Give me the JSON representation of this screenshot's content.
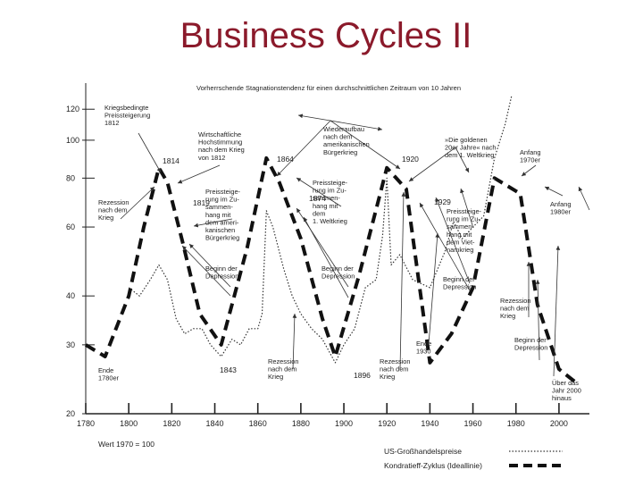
{
  "slide": {
    "title": "Business Cycles II"
  },
  "chart_data": {
    "type": "line",
    "title": "Vorherrschende Stagnationstendenz für einen durchschnittlichen Zeitraum von 10 Jahren",
    "xlabel": "",
    "ylabel": "",
    "y_scale": "log",
    "xlim": [
      1780,
      2010
    ],
    "ylim": [
      20,
      130
    ],
    "x_ticks": [
      "1780",
      "1800",
      "1820",
      "1840",
      "1860",
      "1880",
      "1900",
      "1920",
      "1940",
      "1960",
      "1980",
      "2000"
    ],
    "y_ticks": [
      "120",
      "100",
      "80",
      "60",
      "40",
      "30",
      "20"
    ],
    "base_note": "Wert 1970 = 100",
    "legend": [
      {
        "label": "US-Großhandelspreise",
        "style": "dotted"
      },
      {
        "label": "Kondratieff-Zyklus (Ideallinie)",
        "style": "dashed"
      }
    ],
    "legend_position": "bottom-right",
    "series": [
      {
        "name": "Kondratieff-Zyklus (Ideallinie)",
        "x": [
          1780,
          1789,
          1800,
          1807,
          1814,
          1818,
          1825,
          1833,
          1843,
          1855,
          1864,
          1870,
          1880,
          1890,
          1896,
          1907,
          1920,
          1929,
          1940,
          1950,
          1960,
          1970,
          1982,
          1990,
          2000,
          2008
        ],
        "y": [
          30,
          28,
          40,
          60,
          85,
          78,
          55,
          36,
          30,
          53,
          90,
          78,
          56,
          35,
          28,
          45,
          85,
          75,
          27,
          32,
          42,
          80,
          73,
          38,
          26,
          24
        ]
      },
      {
        "name": "US-Großhandelspreise",
        "x": [
          1800,
          1805,
          1810,
          1814,
          1818,
          1822,
          1826,
          1830,
          1834,
          1838,
          1843,
          1848,
          1852,
          1856,
          1860,
          1862,
          1864,
          1867,
          1872,
          1876,
          1880,
          1885,
          1890,
          1896,
          1900,
          1905,
          1910,
          1915,
          1918,
          1920,
          1922,
          1926,
          1932,
          1940,
          1947,
          1951,
          1955,
          1960,
          1965,
          1970,
          1975,
          1978
        ],
        "y": [
          42,
          40,
          44,
          48,
          44,
          35,
          32,
          33,
          33,
          30,
          28,
          31,
          30,
          33,
          33,
          36,
          66,
          60,
          47,
          40,
          36,
          33,
          31,
          27,
          30,
          33,
          42,
          44,
          57,
          80,
          48,
          51,
          44,
          42,
          52,
          62,
          56,
          60,
          64,
          90,
          110,
          130
        ]
      }
    ],
    "annotations": [
      {
        "text": "Kriegsbedingte Preissteigerung 1812"
      },
      {
        "text": "Wirtschaftliche Hochstimmung nach dem Krieg von 1812"
      },
      {
        "text": "Wiederaufbau nach dem amerikanischen Bürgerkrieg"
      },
      {
        "text": "»Die goldenen 20er Jahre« nach dem 1. Weltkrieg"
      },
      {
        "text": "Anfang 1970er"
      },
      {
        "text": "Rezession nach dem Krieg"
      },
      {
        "text": "Preissteigerung im Zusammenhang mit dem amerikanischen Bürgerkrieg"
      },
      {
        "text": "Preissteigerung im Zusammenhang mit dem 1. Weltkrieg"
      },
      {
        "text": "Preissteigerung im Zusammenhang mit dem Vietnamkrieg"
      },
      {
        "text": "Anfang 1980er"
      },
      {
        "text": "Beginn der Depression"
      },
      {
        "text": "Beginn der Depression"
      },
      {
        "text": "Beginn der Depression"
      },
      {
        "text": "Beginn der Depression"
      },
      {
        "text": "Rezession nach dem Krieg"
      },
      {
        "text": "Rezession nach dem Krieg"
      },
      {
        "text": "Rezession nach dem Krieg"
      },
      {
        "text": "Ende 1780er"
      },
      {
        "text": "Ende 1930"
      },
      {
        "text": "Über das Jahr 2000 hinaus"
      }
    ],
    "point_labels": [
      "1814",
      "1819",
      "1843",
      "1864",
      "1874",
      "1896",
      "1920",
      "1929"
    ]
  }
}
